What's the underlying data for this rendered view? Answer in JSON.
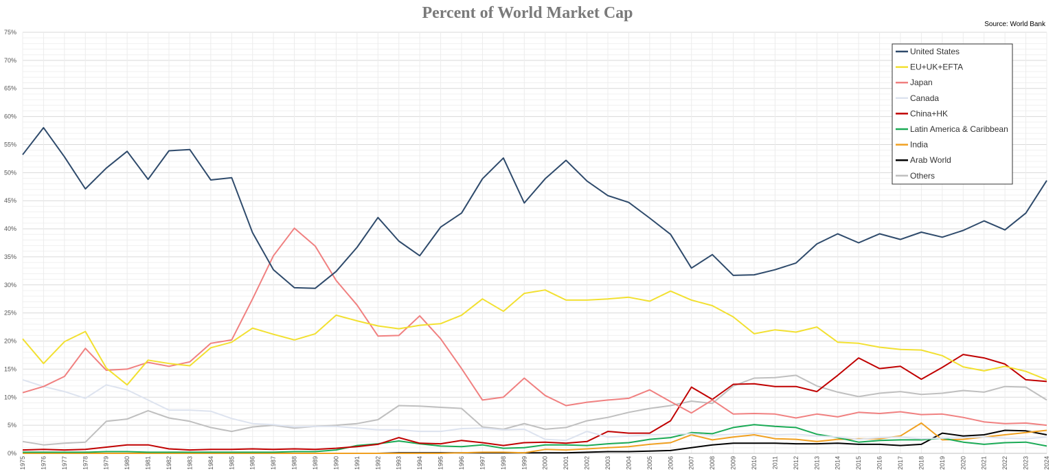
{
  "chart_data": {
    "type": "line",
    "title": "Percent of World Market Cap",
    "source": "Source: World Bank",
    "xlabel": "",
    "ylabel": "",
    "ylim": [
      0,
      75
    ],
    "y_ticks": [
      "0%",
      "5%",
      "10%",
      "15%",
      "20%",
      "25%",
      "30%",
      "35%",
      "40%",
      "45%",
      "50%",
      "55%",
      "60%",
      "65%",
      "70%",
      "75%"
    ],
    "grid": true,
    "legend_position": "top-right",
    "x": [
      "1975",
      "1976",
      "1977",
      "1978",
      "1979",
      "1980",
      "1981",
      "1982",
      "1983",
      "1984",
      "1985",
      "1986",
      "1987",
      "1988",
      "1989",
      "1990",
      "1991",
      "1992",
      "1993",
      "1994",
      "1995",
      "1996",
      "1997",
      "1998",
      "1999",
      "2000",
      "2001",
      "2002",
      "2003",
      "2004",
      "2005",
      "2006",
      "2007",
      "2008",
      "2009",
      "2010",
      "2011",
      "2012",
      "2013",
      "2014",
      "2015",
      "2016",
      "2017",
      "2018",
      "2019",
      "2020",
      "2021",
      "2022",
      "2023",
      "2024"
    ],
    "series": [
      {
        "name": "United States",
        "color": "#2e4a6b",
        "values": [
          53.2,
          58.0,
          52.8,
          47.1,
          50.8,
          53.8,
          48.8,
          53.9,
          54.1,
          48.7,
          49.1,
          39.3,
          32.7,
          29.5,
          29.4,
          32.4,
          36.7,
          42.0,
          37.8,
          35.2,
          40.3,
          42.8,
          48.9,
          52.6,
          44.6,
          48.9,
          52.2,
          48.5,
          45.9,
          44.7,
          41.9,
          39.0,
          33.0,
          35.4,
          31.7,
          31.8,
          32.7,
          33.9,
          37.3,
          39.1,
          37.5,
          39.1,
          38.1,
          39.4,
          38.5,
          39.7,
          41.4,
          39.8,
          42.8,
          48.6
        ]
      },
      {
        "name": "EU+UK+EFTA",
        "color": "#f2e030",
        "values": [
          20.4,
          16.0,
          19.9,
          21.7,
          15.2,
          12.2,
          16.6,
          16.0,
          15.6,
          18.8,
          19.8,
          22.3,
          21.2,
          20.2,
          21.3,
          24.6,
          23.6,
          22.7,
          22.2,
          22.8,
          23.1,
          24.6,
          27.5,
          25.3,
          28.5,
          29.1,
          27.3,
          27.3,
          27.5,
          27.8,
          27.1,
          28.9,
          27.3,
          26.3,
          24.3,
          21.3,
          22.0,
          21.6,
          22.5,
          19.8,
          19.6,
          18.9,
          18.5,
          18.4,
          17.4,
          15.4,
          14.7,
          15.5,
          14.6,
          13.1
        ]
      },
      {
        "name": "Japan",
        "color": "#f08080",
        "values": [
          10.8,
          11.9,
          13.7,
          18.7,
          14.8,
          15.0,
          16.2,
          15.5,
          16.3,
          19.6,
          20.2,
          27.5,
          35.2,
          40.1,
          36.9,
          30.8,
          26.4,
          20.9,
          21.0,
          24.5,
          20.4,
          15.1,
          9.5,
          10.0,
          13.4,
          10.3,
          8.5,
          9.1,
          9.5,
          9.8,
          11.3,
          9.2,
          7.2,
          9.5,
          7.0,
          7.1,
          7.0,
          6.3,
          7.0,
          6.5,
          7.3,
          7.1,
          7.4,
          6.9,
          7.0,
          6.4,
          5.6,
          5.3,
          5.4,
          5.0
        ]
      },
      {
        "name": "Canada",
        "color": "#dde3ef",
        "values": [
          13.1,
          11.9,
          11.0,
          9.8,
          12.2,
          11.3,
          9.5,
          7.7,
          7.7,
          7.5,
          6.2,
          5.3,
          5.1,
          4.7,
          4.8,
          4.8,
          4.5,
          4.2,
          4.2,
          3.9,
          3.9,
          4.4,
          4.5,
          4.2,
          4.3,
          2.5,
          2.3,
          3.9,
          2.9,
          3.1,
          3.3,
          3.4,
          3.5,
          3.2,
          3.4,
          3.6,
          3.3,
          3.4,
          3.1,
          2.9,
          2.5,
          2.8,
          2.9,
          2.6,
          2.7,
          2.8,
          2.9,
          2.7,
          2.6,
          2.9
        ]
      },
      {
        "name": "China+HK",
        "color": "#c00000",
        "values": [
          0.6,
          0.7,
          0.6,
          0.7,
          1.1,
          1.5,
          1.5,
          0.8,
          0.6,
          0.7,
          0.7,
          0.8,
          0.7,
          0.8,
          0.7,
          0.9,
          1.2,
          1.6,
          2.8,
          1.8,
          1.7,
          2.3,
          1.9,
          1.4,
          1.9,
          2.0,
          1.8,
          2.1,
          3.9,
          3.6,
          3.6,
          5.8,
          11.8,
          9.6,
          12.3,
          12.4,
          11.9,
          11.9,
          11.0,
          13.9,
          17.0,
          15.1,
          15.5,
          13.2,
          15.3,
          17.6,
          17.0,
          15.9,
          13.1,
          12.8
        ]
      },
      {
        "name": "Latin America & Caribbean",
        "color": "#1aaa55",
        "values": [
          0.2,
          0.2,
          0.2,
          0.2,
          0.3,
          0.3,
          0.2,
          0.2,
          0.2,
          0.2,
          0.2,
          0.2,
          0.2,
          0.3,
          0.3,
          0.6,
          1.4,
          1.7,
          2.2,
          1.7,
          1.3,
          1.2,
          1.5,
          0.9,
          1.0,
          1.5,
          1.5,
          1.4,
          1.7,
          1.9,
          2.5,
          2.8,
          3.7,
          3.5,
          4.6,
          5.1,
          4.8,
          4.6,
          3.4,
          2.8,
          2.0,
          2.3,
          2.4,
          2.4,
          2.7,
          2.0,
          1.6,
          1.9,
          2.0,
          1.3
        ]
      },
      {
        "name": "India",
        "color": "#f0a020",
        "values": [
          0.0,
          0.0,
          0.0,
          0.0,
          0.0,
          0.0,
          0.0,
          0.0,
          0.0,
          0.0,
          0.0,
          0.0,
          0.0,
          0.0,
          0.0,
          0.0,
          0.0,
          0.0,
          0.0,
          0.0,
          0.0,
          0.1,
          0.2,
          0.2,
          0.1,
          0.7,
          0.6,
          0.8,
          1.0,
          1.2,
          1.6,
          1.9,
          3.3,
          2.4,
          2.9,
          3.3,
          2.6,
          2.5,
          2.1,
          2.5,
          2.6,
          2.6,
          3.1,
          5.4,
          2.4,
          2.5,
          2.9,
          3.3,
          3.7,
          4.1
        ]
      },
      {
        "name": "Arab World",
        "color": "#000000",
        "values": [
          0.0,
          0.0,
          0.0,
          0.0,
          0.0,
          0.0,
          0.0,
          0.0,
          0.0,
          0.0,
          0.0,
          0.0,
          0.0,
          0.0,
          0.0,
          0.0,
          0.0,
          0.0,
          0.1,
          0.1,
          0.1,
          0.1,
          0.1,
          0.1,
          0.1,
          0.1,
          0.1,
          0.2,
          0.3,
          0.3,
          0.4,
          0.5,
          1.0,
          1.5,
          1.8,
          1.8,
          1.8,
          1.7,
          1.7,
          1.8,
          1.6,
          1.6,
          1.4,
          1.6,
          3.6,
          3.1,
          3.3,
          4.1,
          4.0,
          3.3
        ]
      },
      {
        "name": "Others",
        "color": "#bfbfbf",
        "values": [
          2.1,
          1.5,
          1.8,
          2.0,
          5.7,
          6.1,
          7.6,
          6.3,
          5.7,
          4.6,
          3.9,
          4.7,
          5.0,
          4.5,
          4.8,
          5.0,
          5.3,
          6.0,
          8.5,
          8.4,
          8.2,
          8.0,
          4.7,
          4.3,
          5.3,
          4.3,
          4.6,
          5.8,
          6.4,
          7.3,
          8.0,
          8.5,
          9.3,
          8.9,
          12.0,
          13.4,
          13.5,
          13.9,
          12.0,
          10.9,
          10.1,
          10.7,
          11.0,
          10.5,
          10.7,
          11.2,
          10.9,
          11.9,
          11.8,
          9.5
        ]
      }
    ]
  }
}
